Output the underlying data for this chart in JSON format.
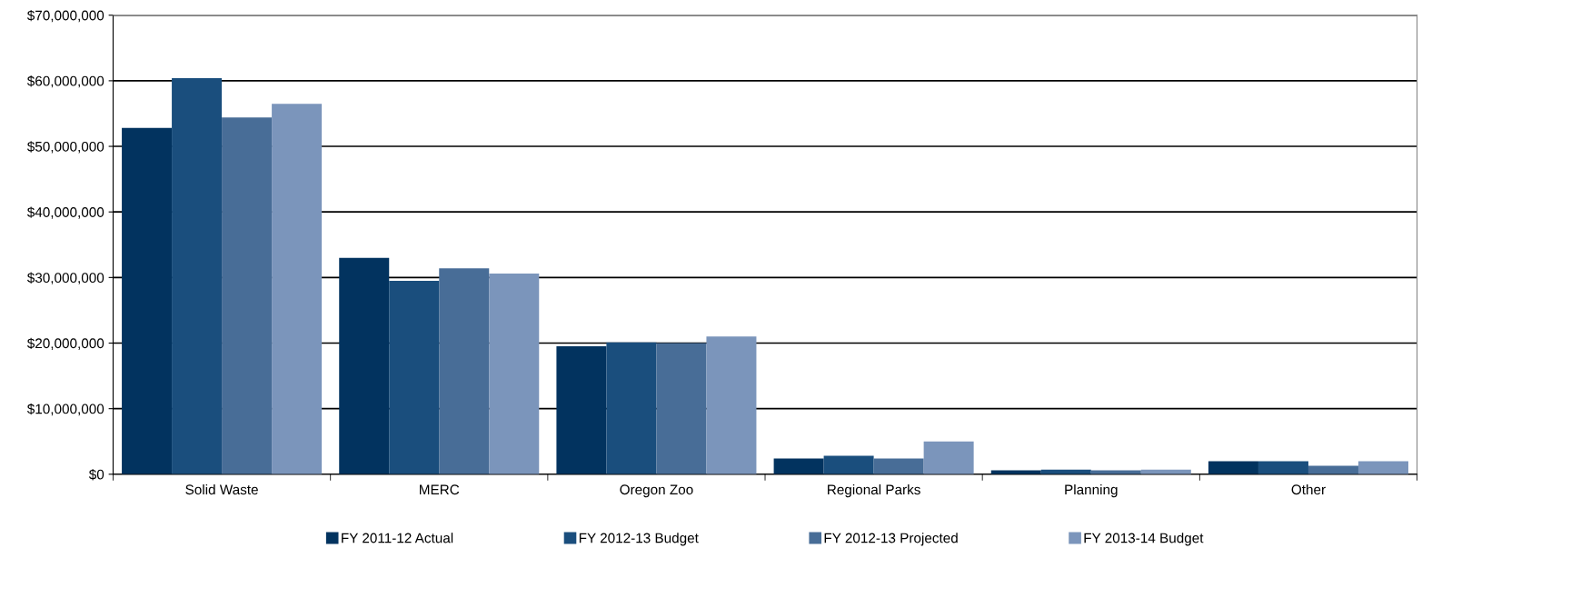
{
  "chart_data": {
    "type": "bar",
    "categories": [
      "Solid Waste",
      "MERC",
      "Oregon Zoo",
      "Regional Parks",
      "Planning",
      "Other"
    ],
    "series": [
      {
        "name": "FY 2011-12 Actual",
        "color": "#02335f",
        "values": [
          52800000,
          33000000,
          19500000,
          2400000,
          600000,
          2000000
        ]
      },
      {
        "name": "FY 2012-13 Budget",
        "color": "#1a4e7d",
        "values": [
          60400000,
          29500000,
          20100000,
          2800000,
          700000,
          2000000
        ]
      },
      {
        "name": "FY 2012-13 Projected",
        "color": "#486d97",
        "values": [
          54400000,
          31400000,
          20000000,
          2400000,
          600000,
          1300000
        ]
      },
      {
        "name": "FY 2013-14 Budget",
        "color": "#7b95bb",
        "values": [
          56500000,
          30600000,
          21000000,
          5000000,
          700000,
          2000000
        ]
      }
    ],
    "ylim": [
      0,
      70000000
    ],
    "yticks": [
      {
        "value": 0,
        "label": "$0"
      },
      {
        "value": 10000000,
        "label": "$10,000,000"
      },
      {
        "value": 20000000,
        "label": "$20,000,000"
      },
      {
        "value": 30000000,
        "label": "$30,000,000"
      },
      {
        "value": 40000000,
        "label": "$40,000,000"
      },
      {
        "value": 50000000,
        "label": "$50,000,000"
      },
      {
        "value": 60000000,
        "label": "$60,000,000"
      },
      {
        "value": 70000000,
        "label": "$70,000,000"
      }
    ],
    "grid": "y",
    "legend": "bottom"
  }
}
